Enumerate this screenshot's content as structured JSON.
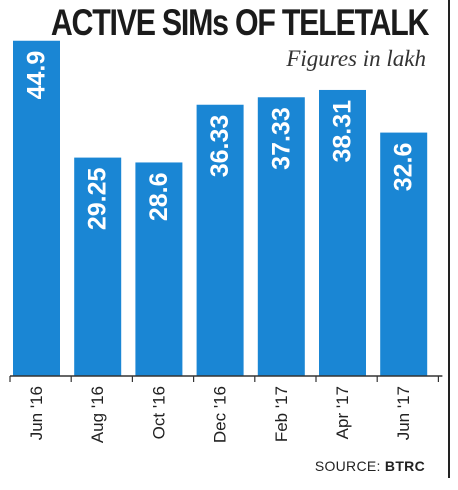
{
  "chart_data": {
    "type": "bar",
    "title": "ACTIVE SIMs  OF TELETALK",
    "subtitle": "Figures in lakh",
    "categories": [
      "Jun '16",
      "Aug '16",
      "Oct '16",
      "Dec '16",
      "Feb '17",
      "Apr '17",
      "Jun '17"
    ],
    "values": [
      44.9,
      29.25,
      28.6,
      36.33,
      37.33,
      38.31,
      32.6
    ],
    "value_labels": [
      "44.9",
      "29.25",
      "28.6",
      "36.33",
      "37.33",
      "38.31",
      "32.6"
    ],
    "xlabel": "",
    "ylabel": "",
    "ylim": [
      0,
      45
    ],
    "grid": false,
    "bar_color": "#1a86d4",
    "label_color": "#ffffff"
  },
  "source": {
    "prefix": "SOURCE:",
    "name": "BTRC"
  }
}
